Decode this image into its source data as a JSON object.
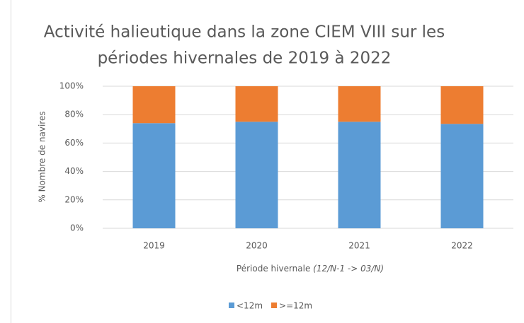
{
  "chart_data": {
    "type": "stacked_bar",
    "title": [
      "Activité halieutique dans la zone CIEM VIII sur les",
      "périodes hivernales de 2019 à 2022"
    ],
    "xlabel": "Période hivernale",
    "xlabel_note": "(12/N-1 -> 03/N)",
    "ylabel": "% Nombre de navires",
    "categories": [
      "2019",
      "2020",
      "2021",
      "2022"
    ],
    "series": [
      {
        "name": "<12m",
        "color": "#5b9bd5",
        "values": [
          74,
          75,
          75,
          73.5
        ]
      },
      {
        "name": ">=12m",
        "color": "#ed7d31",
        "values": [
          26,
          25,
          25,
          26.5
        ]
      }
    ],
    "ylim": [
      0,
      100
    ],
    "yticks": [
      {
        "value": 0,
        "label": "0%"
      },
      {
        "value": 20,
        "label": "20%"
      },
      {
        "value": 40,
        "label": "40%"
      },
      {
        "value": 60,
        "label": "60%"
      },
      {
        "value": 80,
        "label": "80%"
      },
      {
        "value": 100,
        "label": "100%"
      }
    ],
    "grid": true,
    "legend": "bottom"
  }
}
